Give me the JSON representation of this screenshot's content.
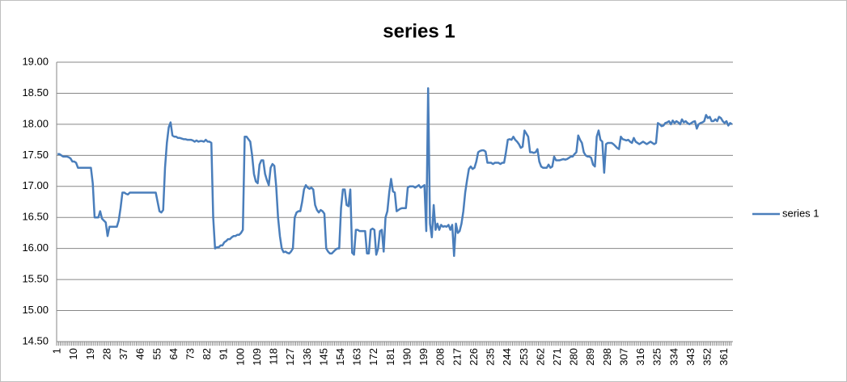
{
  "chart_data": {
    "type": "line",
    "title": "series 1",
    "categories": [
      "1",
      null,
      null,
      null,
      null,
      null,
      null,
      null,
      null,
      "10",
      null,
      null,
      null,
      null,
      null,
      null,
      null,
      null,
      "19",
      null,
      null,
      null,
      null,
      null,
      null,
      null,
      null,
      "28",
      null,
      null,
      null,
      null,
      null,
      null,
      null,
      null,
      "37",
      null,
      null,
      null,
      null,
      null,
      null,
      null,
      null,
      "46",
      null,
      null,
      null,
      null,
      null,
      null,
      null,
      null,
      "55",
      null,
      null,
      null,
      null,
      null,
      null,
      null,
      null,
      "64",
      null,
      null,
      null,
      null,
      null,
      null,
      null,
      null,
      "73",
      null,
      null,
      null,
      null,
      null,
      null,
      null,
      null,
      "82",
      null,
      null,
      null,
      null,
      null,
      null,
      null,
      null,
      "91",
      null,
      null,
      null,
      null,
      null,
      null,
      null,
      null,
      "100",
      null,
      null,
      null,
      null,
      null,
      null,
      null,
      null,
      "109",
      null,
      null,
      null,
      null,
      null,
      null,
      null,
      null,
      "118",
      null,
      null,
      null,
      null,
      null,
      null,
      null,
      null,
      "127",
      null,
      null,
      null,
      null,
      null,
      null,
      null,
      null,
      "136",
      null,
      null,
      null,
      null,
      null,
      null,
      null,
      null,
      "145",
      null,
      null,
      null,
      null,
      null,
      null,
      null,
      null,
      "154",
      null,
      null,
      null,
      null,
      null,
      null,
      null,
      null,
      "163",
      null,
      null,
      null,
      null,
      null,
      null,
      null,
      null,
      "172",
      null,
      null,
      null,
      null,
      null,
      null,
      null,
      null,
      "181",
      null,
      null,
      null,
      null,
      null,
      null,
      null,
      null,
      "190",
      null,
      null,
      null,
      null,
      null,
      null,
      null,
      null,
      "199",
      null,
      null,
      null,
      null,
      null,
      null,
      null,
      null,
      "208",
      null,
      null,
      null,
      null,
      null,
      null,
      null,
      null,
      "217",
      null,
      null,
      null,
      null,
      null,
      null,
      null,
      null,
      "226",
      null,
      null,
      null,
      null,
      null,
      null,
      null,
      null,
      "235",
      null,
      null,
      null,
      null,
      null,
      null,
      null,
      null,
      "244",
      null,
      null,
      null,
      null,
      null,
      null,
      null,
      null,
      "253",
      null,
      null,
      null,
      null,
      null,
      null,
      null,
      null,
      "262",
      null,
      null,
      null,
      null,
      null,
      null,
      null,
      null,
      "271",
      null,
      null,
      null,
      null,
      null,
      null,
      null,
      null,
      "280",
      null,
      null,
      null,
      null,
      null,
      null,
      null,
      null,
      "289",
      null,
      null,
      null,
      null,
      null,
      null,
      null,
      null,
      "298",
      null,
      null,
      null,
      null,
      null,
      null,
      null,
      null,
      "307",
      null,
      null,
      null,
      null,
      null,
      null,
      null,
      null,
      "316",
      null,
      null,
      null,
      null,
      null,
      null,
      null,
      null,
      "325",
      null,
      null,
      null,
      null,
      null,
      null,
      null,
      null,
      "334",
      null,
      null,
      null,
      null,
      null,
      null,
      null,
      null,
      "343",
      null,
      null,
      null,
      null,
      null,
      null,
      null,
      null,
      "352",
      null,
      null,
      null,
      null,
      null,
      null,
      null,
      null,
      "361",
      null,
      null,
      null,
      null
    ],
    "series": [
      {
        "name": "series 1",
        "color": "#4a7ebb",
        "values": [
          17.52,
          17.52,
          17.5,
          17.48,
          17.48,
          17.48,
          17.47,
          17.45,
          17.4,
          17.4,
          17.38,
          17.3,
          17.3,
          17.3,
          17.3,
          17.3,
          17.3,
          17.3,
          17.3,
          17.05,
          16.5,
          16.5,
          16.5,
          16.6,
          16.48,
          16.45,
          16.42,
          16.2,
          16.35,
          16.35,
          16.35,
          16.35,
          16.35,
          16.45,
          16.65,
          16.9,
          16.9,
          16.88,
          16.87,
          16.9,
          16.9,
          16.9,
          16.9,
          16.9,
          16.9,
          16.9,
          16.9,
          16.9,
          16.9,
          16.9,
          16.9,
          16.9,
          16.9,
          16.9,
          16.75,
          16.6,
          16.58,
          16.62,
          17.3,
          17.7,
          17.95,
          18.03,
          17.82,
          17.8,
          17.8,
          17.78,
          17.78,
          17.77,
          17.76,
          17.76,
          17.75,
          17.75,
          17.75,
          17.74,
          17.72,
          17.74,
          17.72,
          17.73,
          17.73,
          17.72,
          17.75,
          17.72,
          17.72,
          17.7,
          16.5,
          16.0,
          16.02,
          16.02,
          16.05,
          16.05,
          16.1,
          16.12,
          16.15,
          16.15,
          16.18,
          16.2,
          16.2,
          16.22,
          16.22,
          16.25,
          16.3,
          17.8,
          17.8,
          17.76,
          17.72,
          17.5,
          17.2,
          17.08,
          17.05,
          17.35,
          17.42,
          17.42,
          17.2,
          17.1,
          17.02,
          17.3,
          17.36,
          17.33,
          17.0,
          16.5,
          16.2,
          16.0,
          15.94,
          15.95,
          15.93,
          15.92,
          15.95,
          16.0,
          16.5,
          16.58,
          16.6,
          16.6,
          16.75,
          16.95,
          17.02,
          16.98,
          16.96,
          16.98,
          16.95,
          16.7,
          16.62,
          16.58,
          16.62,
          16.6,
          16.56,
          16.0,
          15.95,
          15.92,
          15.92,
          15.95,
          15.98,
          16.0,
          16.0,
          16.65,
          16.95,
          16.95,
          16.7,
          16.68,
          16.95,
          15.93,
          15.9,
          16.3,
          16.3,
          16.28,
          16.28,
          16.28,
          16.28,
          15.92,
          15.92,
          16.3,
          16.32,
          16.3,
          15.9,
          16.0,
          16.28,
          16.3,
          15.95,
          16.5,
          16.6,
          16.9,
          17.12,
          16.92,
          16.9,
          16.6,
          16.62,
          16.64,
          16.65,
          16.65,
          16.65,
          16.98,
          17.0,
          17.0,
          17.0,
          16.98,
          17.0,
          17.02,
          16.98,
          17.0,
          17.02,
          16.28,
          18.58,
          16.4,
          16.18,
          16.7,
          16.3,
          16.4,
          16.3,
          16.38,
          16.35,
          16.36,
          16.35,
          16.38,
          16.3,
          16.38,
          15.88,
          16.4,
          16.25,
          16.28,
          16.4,
          16.6,
          16.9,
          17.1,
          17.28,
          17.32,
          17.28,
          17.3,
          17.4,
          17.55,
          17.57,
          17.58,
          17.58,
          17.56,
          17.38,
          17.38,
          17.38,
          17.36,
          17.38,
          17.38,
          17.38,
          17.36,
          17.38,
          17.38,
          17.55,
          17.75,
          17.76,
          17.75,
          17.8,
          17.75,
          17.72,
          17.68,
          17.62,
          17.64,
          17.9,
          17.85,
          17.8,
          17.55,
          17.55,
          17.54,
          17.55,
          17.6,
          17.4,
          17.32,
          17.3,
          17.3,
          17.3,
          17.35,
          17.3,
          17.32,
          17.48,
          17.42,
          17.42,
          17.42,
          17.43,
          17.44,
          17.43,
          17.44,
          17.46,
          17.48,
          17.48,
          17.52,
          17.55,
          17.82,
          17.75,
          17.7,
          17.55,
          17.5,
          17.48,
          17.48,
          17.46,
          17.35,
          17.32,
          17.8,
          17.9,
          17.75,
          17.72,
          17.22,
          17.68,
          17.7,
          17.7,
          17.7,
          17.68,
          17.65,
          17.62,
          17.6,
          17.8,
          17.76,
          17.75,
          17.74,
          17.75,
          17.72,
          17.7,
          17.78,
          17.72,
          17.7,
          17.68,
          17.7,
          17.72,
          17.7,
          17.68,
          17.7,
          17.72,
          17.7,
          17.68,
          17.7,
          18.02,
          18.0,
          17.97,
          17.98,
          18.02,
          18.03,
          18.05,
          18.0,
          18.06,
          18.02,
          18.05,
          18.03,
          18.0,
          18.08,
          18.03,
          18.05,
          18.02,
          18.0,
          18.02,
          18.04,
          18.05,
          17.93,
          18.0,
          18.02,
          18.03,
          18.05,
          18.15,
          18.1,
          18.12,
          18.05,
          18.05,
          18.08,
          18.05,
          18.12,
          18.1,
          18.05,
          18.02,
          18.05,
          17.98,
          18.02,
          18.0
        ]
      }
    ],
    "ylim": [
      14.5,
      19
    ],
    "yticks": [
      {
        "value": 14.5,
        "label": "14.50"
      },
      {
        "value": 15,
        "label": "15.00"
      },
      {
        "value": 15.5,
        "label": "15.50"
      },
      {
        "value": 16,
        "label": "16.00"
      },
      {
        "value": 16.5,
        "label": "16.50"
      },
      {
        "value": 17,
        "label": "17.00"
      },
      {
        "value": 17.5,
        "label": "17.50"
      },
      {
        "value": 18,
        "label": "18.00"
      },
      {
        "value": 18.5,
        "label": "18.50"
      },
      {
        "value": 19,
        "label": "19.00"
      }
    ],
    "grid": true,
    "legend": "right"
  }
}
